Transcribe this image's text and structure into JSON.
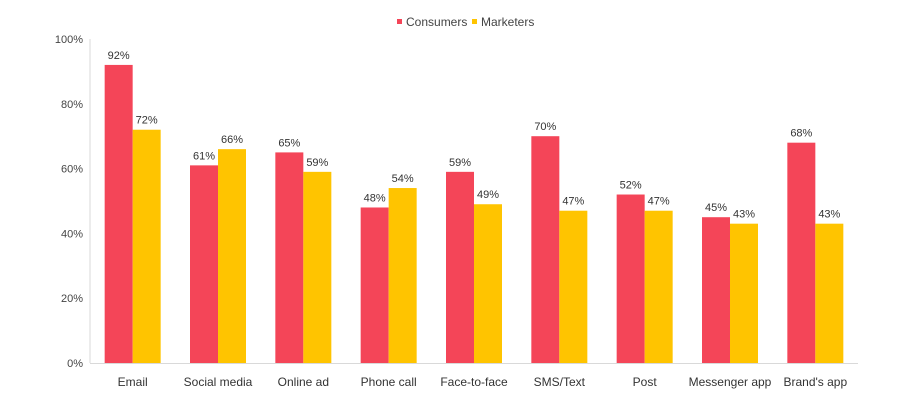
{
  "chart_data": {
    "type": "bar",
    "categories": [
      "Email",
      "Social media",
      "Online ad",
      "Phone call",
      "Face-to-face",
      "SMS/Text",
      "Post",
      "Messenger app",
      "Brand's app"
    ],
    "series": [
      {
        "name": "Consumers",
        "color": "#f44558",
        "values": [
          92,
          61,
          65,
          48,
          59,
          70,
          52,
          45,
          68
        ]
      },
      {
        "name": "Marketers",
        "color": "#ffc400",
        "values": [
          72,
          66,
          59,
          54,
          49,
          47,
          47,
          43,
          43
        ]
      }
    ],
    "yticks": [
      "0%",
      "20%",
      "40%",
      "60%",
      "80%",
      "100%"
    ],
    "ylim": [
      0,
      100
    ],
    "value_suffix": "%",
    "legend_position": "top-center",
    "grid": false
  }
}
